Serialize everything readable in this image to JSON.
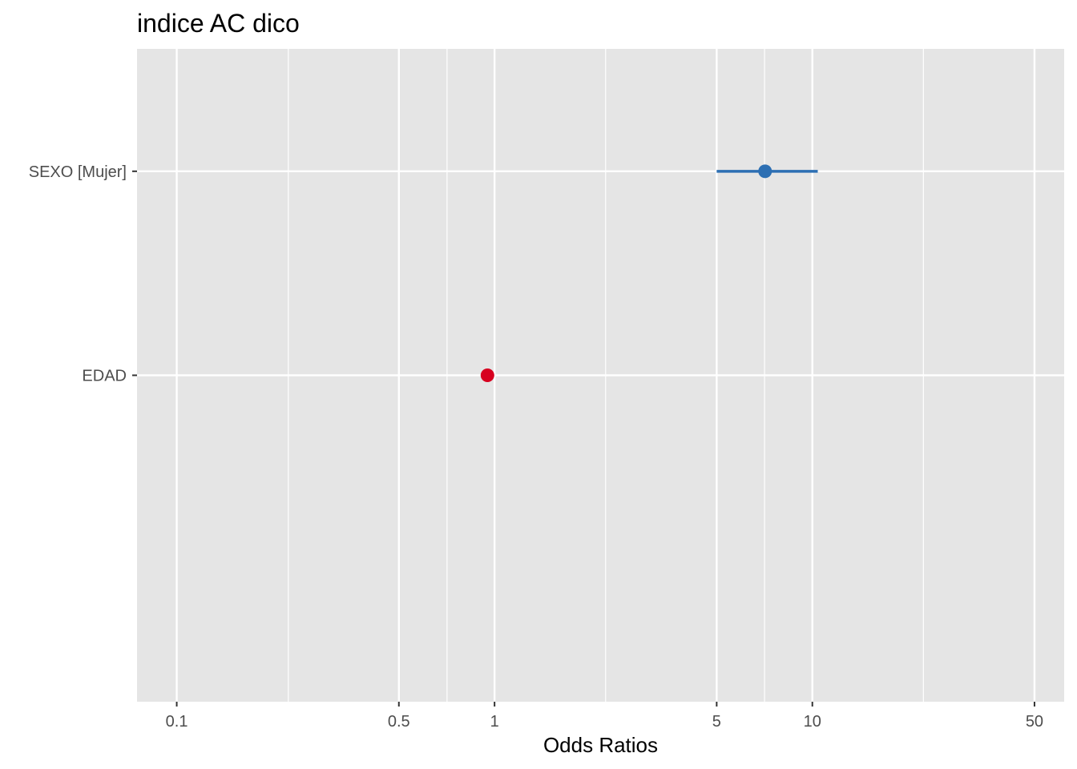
{
  "chart_data": {
    "type": "scatter",
    "title": "indice AC dico",
    "xlabel": "Odds Ratios",
    "ylabel": "",
    "x_scale": "log",
    "xlim": [
      0.075,
      62
    ],
    "x_ticks": [
      0.1,
      0.5,
      1,
      5,
      10,
      50
    ],
    "x_tick_labels": [
      "0.1",
      "0.5",
      "1",
      "5",
      "10",
      "50"
    ],
    "x_minor_gridlines": [
      0.2244,
      0.7088,
      2.2361,
      7.0711,
      22.3607
    ],
    "categories": [
      "SEXO [Mujer]",
      "EDAD"
    ],
    "estimates": [
      {
        "term": "SEXO [Mujer]",
        "estimate": 7.1,
        "conf_low": 5.0,
        "conf_high": 10.4,
        "color": "#2C6FB3"
      },
      {
        "term": "EDAD",
        "estimate": 0.95,
        "conf_low": 0.94,
        "conf_high": 0.96,
        "color": "#D7001F"
      }
    ],
    "grid": true,
    "legend": "none",
    "panel_background": "#E5E5E5",
    "grid_color": "#FFFFFF"
  }
}
